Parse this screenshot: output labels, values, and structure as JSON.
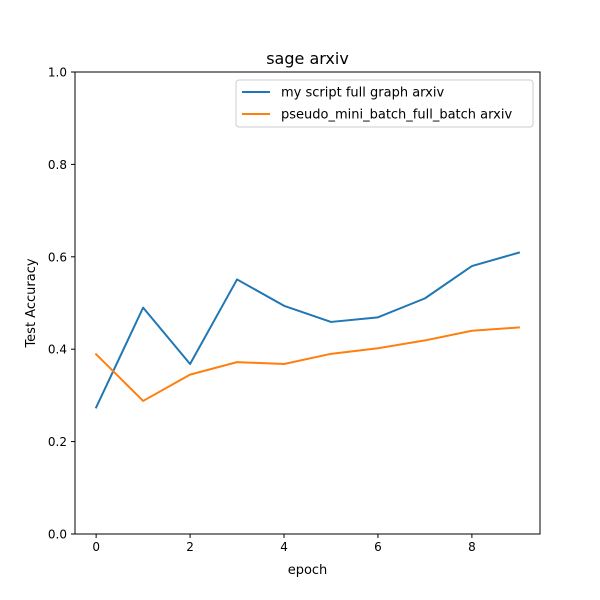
{
  "chart_data": {
    "type": "line",
    "title": "sage arxiv",
    "xlabel": "epoch",
    "ylabel": "Test Accuracy",
    "xlim": [
      -0.45,
      9.45
    ],
    "ylim": [
      0.0,
      1.0
    ],
    "xticks": [
      0,
      2,
      4,
      6,
      8
    ],
    "yticks": [
      0.0,
      0.2,
      0.4,
      0.6,
      0.8,
      1.0
    ],
    "xtick_labels": [
      "0",
      "2",
      "4",
      "6",
      "8"
    ],
    "ytick_labels": [
      "0.0",
      "0.2",
      "0.4",
      "0.6",
      "0.8",
      "1.0"
    ],
    "grid": false,
    "legend_position": "top-right",
    "x": [
      0,
      1,
      2,
      3,
      4,
      5,
      6,
      7,
      8,
      9
    ],
    "series": [
      {
        "name": "my script full graph arxiv",
        "color": "#1f77b4",
        "values": [
          0.274,
          0.49,
          0.368,
          0.551,
          0.494,
          0.459,
          0.469,
          0.51,
          0.58,
          0.609
        ]
      },
      {
        "name": "pseudo_mini_batch_full_batch arxiv",
        "color": "#ff7f0e",
        "values": [
          0.389,
          0.288,
          0.345,
          0.372,
          0.368,
          0.39,
          0.402,
          0.419,
          0.44,
          0.447
        ]
      }
    ]
  }
}
